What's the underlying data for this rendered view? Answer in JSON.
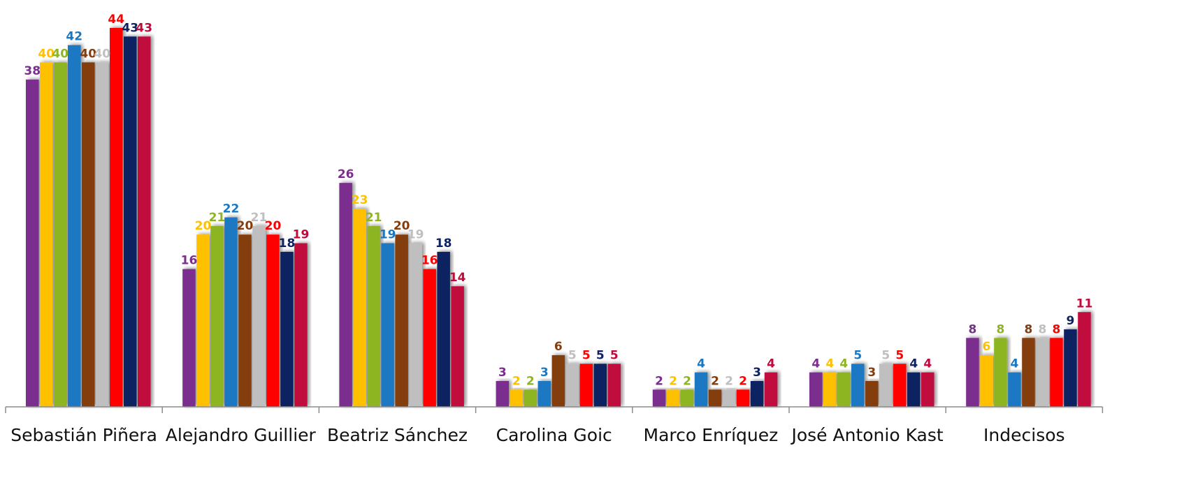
{
  "chart_data": {
    "type": "bar",
    "categories": [
      "Sebastián Piñera",
      "Alejandro Guillier",
      "Beatriz Sánchez",
      "Carolina Goic",
      "Marco Enríquez",
      "José Antonio Kast",
      "Indecisos"
    ],
    "series": [
      {
        "color": "#7b2d8e",
        "values": [
          38,
          16,
          26,
          3,
          2,
          4,
          8
        ]
      },
      {
        "color": "#ffc000",
        "values": [
          40,
          20,
          23,
          2,
          2,
          4,
          6
        ]
      },
      {
        "color": "#8db520",
        "values": [
          40,
          21,
          21,
          2,
          2,
          4,
          8
        ]
      },
      {
        "color": "#1a78c2",
        "values": [
          42,
          22,
          19,
          3,
          4,
          5,
          4
        ]
      },
      {
        "color": "#843c0c",
        "values": [
          40,
          20,
          20,
          6,
          2,
          3,
          8
        ]
      },
      {
        "color": "#bfbfbf",
        "values": [
          40,
          21,
          19,
          5,
          2,
          5,
          8
        ]
      },
      {
        "color": "#ff0000",
        "values": [
          44,
          20,
          16,
          5,
          2,
          5,
          8
        ]
      },
      {
        "color": "#0e2160",
        "values": [
          43,
          18,
          18,
          5,
          3,
          4,
          9
        ]
      },
      {
        "color": "#c00a3c",
        "values": [
          43,
          19,
          14,
          5,
          4,
          4,
          11
        ]
      }
    ],
    "ylim": [
      0,
      44
    ],
    "grid": false,
    "data_labels": true
  }
}
